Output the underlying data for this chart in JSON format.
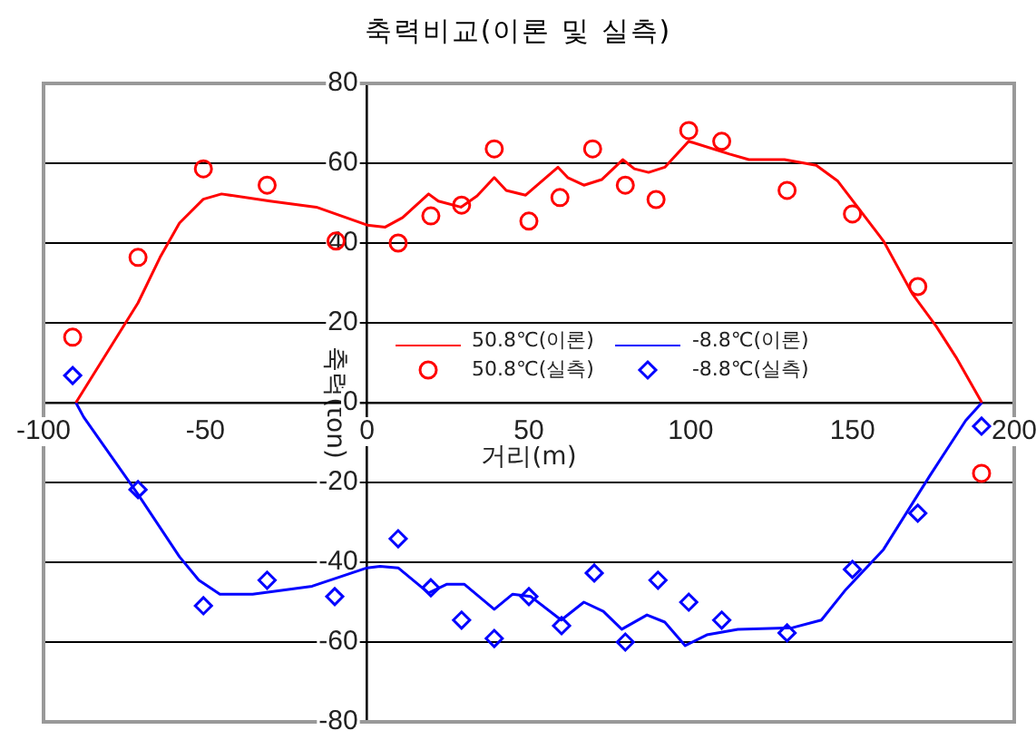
{
  "chart_data": {
    "type": "line",
    "title": "축력비교(이론 및 실측)",
    "xlabel": "거리(m)",
    "ylabel": "축력(ton)",
    "xlim": [
      -100,
      200
    ],
    "xticks": [
      -100,
      -50,
      0,
      50,
      100,
      150,
      200
    ],
    "ylim": [
      -80,
      80
    ],
    "yticks": [
      -80,
      -60,
      -40,
      -20,
      0,
      20,
      40,
      60,
      80
    ],
    "grid": "y",
    "legend": "center right",
    "series": [
      {
        "name": "50.8℃(이론)",
        "color": "#ff0000",
        "marker": "none",
        "x": [
          -90,
          -70.8,
          -64,
          -58,
          -50.6,
          -45,
          -30,
          -15.7,
          0,
          5.6,
          11,
          19,
          22,
          29,
          34,
          39.3,
          43,
          49,
          59,
          62,
          67,
          72.5,
          79,
          82.6,
          87,
          92,
          99.4,
          112,
          118,
          129,
          138.8,
          145.5,
          159.6,
          168.5,
          176,
          182,
          190
        ],
        "values": [
          0,
          25,
          36.4,
          45,
          51,
          52.3,
          50.5,
          49,
          44.5,
          44,
          46.4,
          52.3,
          50.5,
          49,
          51.8,
          56.4,
          53.2,
          52,
          59,
          56.4,
          54.5,
          55.9,
          60.9,
          58.6,
          57.7,
          59,
          65.5,
          62.3,
          60.9,
          60.9,
          59.5,
          55.5,
          40.5,
          27.3,
          19,
          11.4,
          0
        ]
      },
      {
        "name": "-8.8℃(이론)",
        "color": "#0000ff",
        "marker": "none",
        "x": [
          -90,
          -87.6,
          -70.8,
          -58,
          -52,
          -45.5,
          -35.4,
          -17,
          0,
          4,
          9.6,
          19,
          24.7,
          30,
          39.3,
          45,
          50.6,
          60,
          67,
          73,
          78.7,
          86.5,
          92,
          98.3,
          105,
          114.6,
          131.5,
          140.4,
          148,
          159.6,
          174,
          185,
          190
        ],
        "values": [
          0,
          -3.6,
          -23,
          -38.6,
          -44.5,
          -48,
          -48,
          -46,
          -41.4,
          -41,
          -41.4,
          -47.7,
          -45.5,
          -45.5,
          -51.8,
          -48,
          -48.6,
          -54.5,
          -50,
          -52.3,
          -56.8,
          -53.2,
          -55,
          -60.9,
          -58.2,
          -56.8,
          -56.4,
          -54.5,
          -46.8,
          -36.8,
          -18.2,
          -4.5,
          0
        ]
      },
      {
        "name": "50.8℃(실측)",
        "type": "scatter",
        "color": "#ff0000",
        "marker": "circle",
        "x": [
          -91,
          -70.8,
          -50.6,
          -30.9,
          -9.6,
          9.6,
          19.7,
          29.2,
          39.3,
          50,
          59.6,
          69.7,
          79.8,
          89.3,
          99.4,
          109.6,
          129.8,
          150,
          170.2,
          189.9
        ],
        "values": [
          16.4,
          36.4,
          58.6,
          54.5,
          40.5,
          40,
          46.8,
          49.5,
          63.6,
          45.5,
          51.4,
          63.6,
          54.5,
          50.9,
          68.2,
          65.5,
          53.2,
          47.3,
          29.1,
          -17.7
        ]
      },
      {
        "name": "-8.8℃(실측)",
        "type": "scatter",
        "color": "#0000ff",
        "marker": "diamond",
        "x": [
          -91,
          -70.8,
          -50.6,
          -30.9,
          -10,
          9.6,
          19.7,
          29.2,
          39.3,
          50,
          60.1,
          70.2,
          79.8,
          89.9,
          99.4,
          109.6,
          129.8,
          150,
          170.2,
          189.9
        ],
        "values": [
          6.8,
          -21.8,
          -50.9,
          -44.5,
          -48.6,
          -34.1,
          -46.4,
          -54.5,
          -59.1,
          -48.6,
          -55.9,
          -42.7,
          -60,
          -44.5,
          -50,
          -54.5,
          -57.7,
          -41.8,
          -27.7,
          -5.9
        ]
      }
    ]
  }
}
